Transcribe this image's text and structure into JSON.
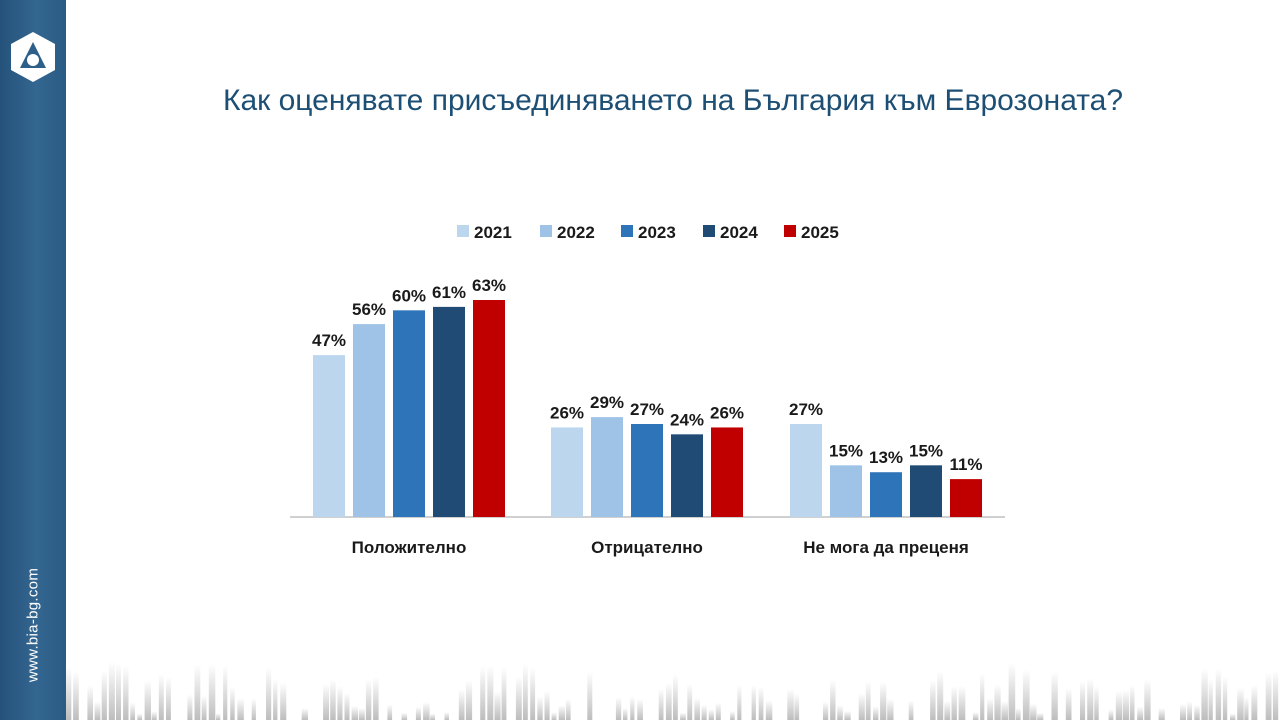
{
  "sidebar": {
    "site_url": "www.bia-bg.com"
  },
  "title": "Как оценявате присъединяването на България към Еврозоната?",
  "colors": {
    "sidebar": "#2d5f89",
    "title": "#1d4f74",
    "series": [
      "#bcd6ed",
      "#9ec3e6",
      "#2e74b8",
      "#1f4b74",
      "#c00000"
    ]
  },
  "chart_data": {
    "type": "bar",
    "title": "Как оценявате присъединяването на България към Еврозоната?",
    "categories": [
      "Положително",
      "Отрицателно",
      "Не мога да преценя"
    ],
    "series": [
      {
        "name": "2021",
        "values": [
          47,
          26,
          27
        ]
      },
      {
        "name": "2022",
        "values": [
          56,
          29,
          15
        ]
      },
      {
        "name": "2023",
        "values": [
          60,
          27,
          13
        ]
      },
      {
        "name": "2024",
        "values": [
          61,
          24,
          15
        ]
      },
      {
        "name": "2025",
        "values": [
          63,
          26,
          11
        ]
      }
    ],
    "value_suffix": "%",
    "ylim": [
      0,
      70
    ],
    "legend": "top-center",
    "grid": false,
    "xlabel": "",
    "ylabel": ""
  }
}
